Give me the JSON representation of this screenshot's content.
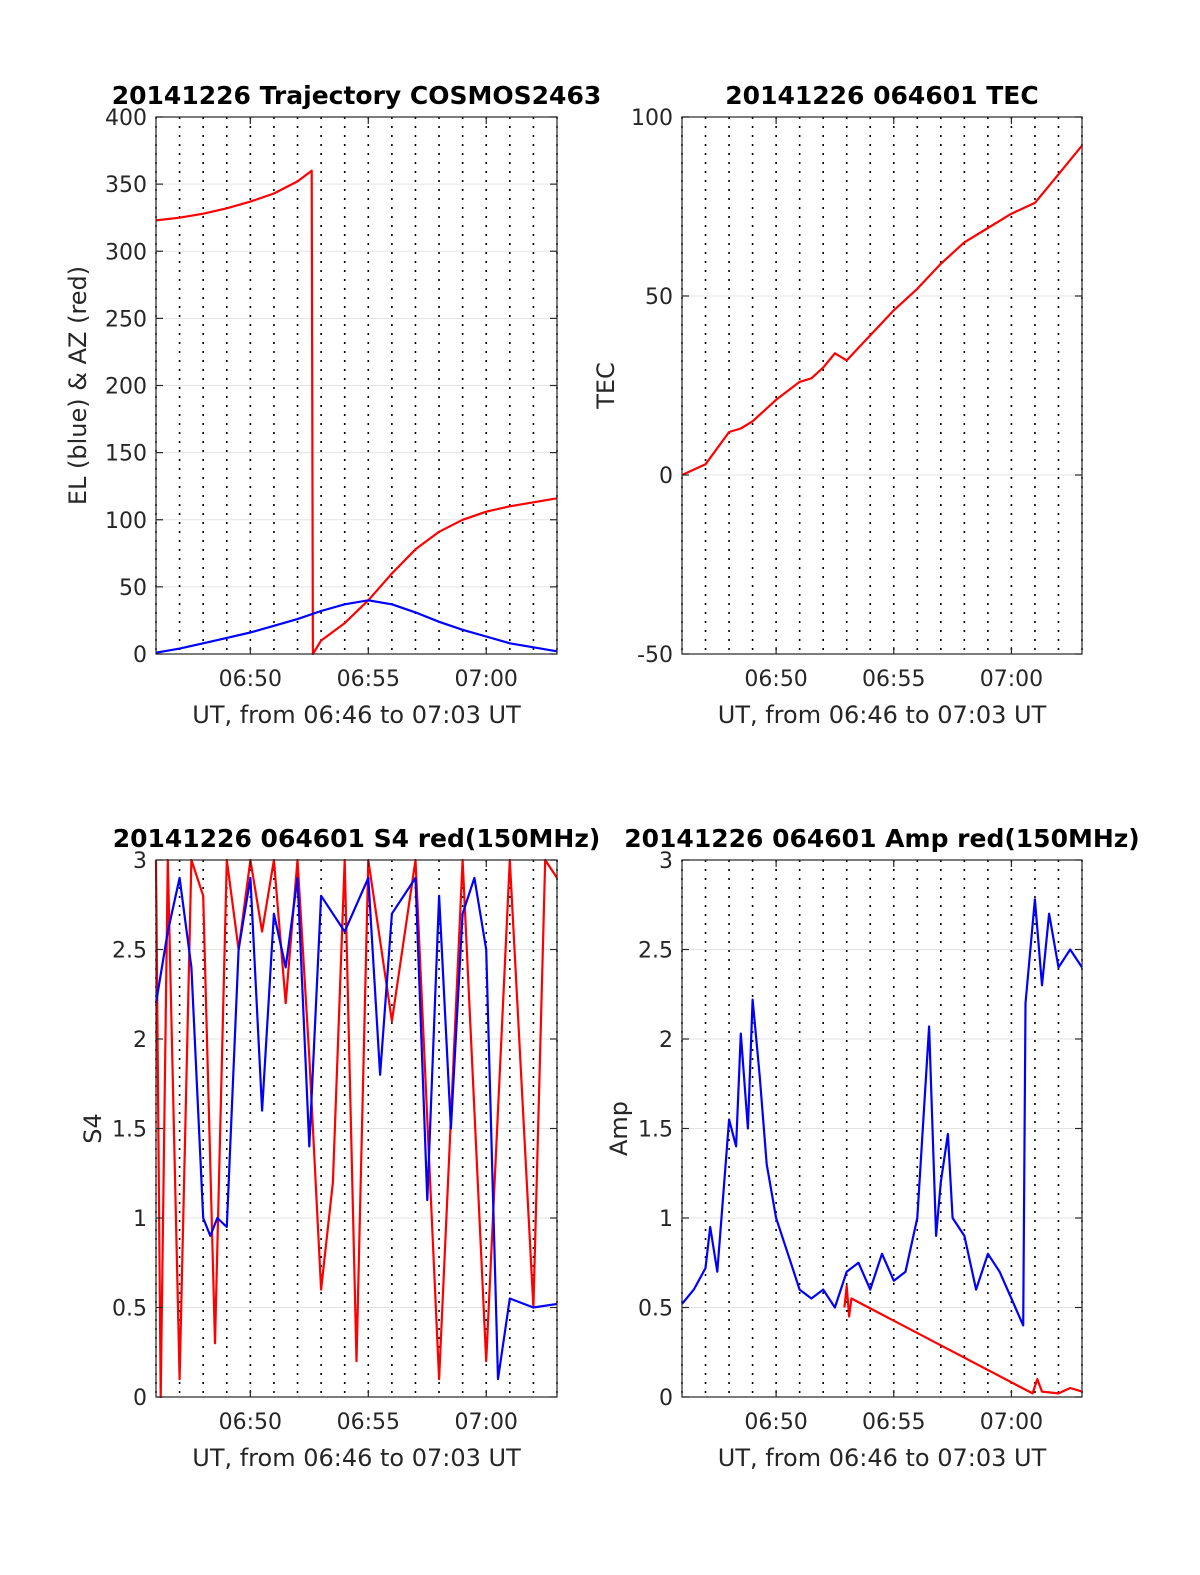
{
  "chart_data": [
    {
      "type": "line",
      "title": "20141226 Trajectory COSMOS2463",
      "xlabel": "UT, from 06:46 to 07:03 UT",
      "ylabel": "EL (blue) & AZ (red)",
      "x_unit": "minutes past 06:00 UT",
      "xlim": [
        46,
        63
      ],
      "ylim": [
        0,
        400
      ],
      "x_ticks": [
        {
          "value": 50,
          "label": "06:50"
        },
        {
          "value": 55,
          "label": "06:55"
        },
        {
          "value": 60,
          "label": "07:00"
        }
      ],
      "y_ticks": [
        0,
        50,
        100,
        150,
        200,
        250,
        300,
        350,
        400
      ],
      "grid": true,
      "series": [
        {
          "color": "#ff0000",
          "x": [
            46,
            47,
            48,
            49,
            50,
            51,
            52,
            52.6,
            52.65,
            53,
            54,
            55,
            56,
            57,
            58,
            59,
            60,
            61,
            62,
            63
          ],
          "y": [
            323,
            325,
            328,
            332,
            337,
            343,
            352,
            360,
            0,
            10,
            23,
            40,
            60,
            78,
            91,
            100,
            106,
            110,
            113,
            116
          ]
        },
        {
          "color": "#0000ff",
          "x": [
            46,
            47,
            48,
            49,
            50,
            51,
            52,
            53,
            54,
            55,
            56,
            57,
            58,
            59,
            60,
            61,
            62,
            63
          ],
          "y": [
            1,
            4,
            8,
            12,
            16,
            21,
            26,
            32,
            37,
            40,
            37,
            31,
            24,
            18,
            13,
            8,
            5,
            2
          ]
        }
      ]
    },
    {
      "type": "line",
      "title": "20141226 064601 TEC",
      "xlabel": "UT, from 06:46 to 07:03 UT",
      "ylabel": "TEC",
      "x_unit": "minutes past 06:00 UT",
      "xlim": [
        46,
        63
      ],
      "ylim": [
        -50,
        100
      ],
      "x_ticks": [
        {
          "value": 50,
          "label": "06:50"
        },
        {
          "value": 55,
          "label": "06:55"
        },
        {
          "value": 60,
          "label": "07:00"
        }
      ],
      "y_ticks": [
        -50,
        0,
        50,
        100
      ],
      "grid": true,
      "series": [
        {
          "color": "#ff0000",
          "x": [
            46,
            47,
            48,
            48.5,
            49,
            50,
            51,
            51.5,
            52,
            52.5,
            53,
            54,
            55,
            56,
            57,
            58,
            59,
            60,
            61,
            62,
            63
          ],
          "y": [
            0,
            3,
            12,
            13,
            15,
            21,
            26,
            27,
            30,
            34,
            32,
            39,
            46,
            52,
            59,
            65,
            69,
            73,
            76,
            84,
            92
          ]
        }
      ]
    },
    {
      "type": "line",
      "title": "20141226 064601 S4 red(150MHz)",
      "xlabel": "UT, from 06:46 to 07:03 UT",
      "ylabel": "S4",
      "x_unit": "minutes past 06:00 UT",
      "xlim": [
        46,
        63
      ],
      "ylim": [
        0,
        3
      ],
      "x_ticks": [
        {
          "value": 50,
          "label": "06:50"
        },
        {
          "value": 55,
          "label": "06:55"
        },
        {
          "value": 60,
          "label": "07:00"
        }
      ],
      "y_ticks": [
        0,
        0.5,
        1,
        1.5,
        2,
        2.5,
        3
      ],
      "y_tick_labels": [
        "0",
        "0.5",
        "1",
        "1.5",
        "2",
        "2.5",
        "3"
      ],
      "grid": true,
      "series": [
        {
          "color": "#ff0000",
          "x": [
            46,
            46.2,
            46.5,
            47,
            47.5,
            48,
            48.5,
            49,
            49.5,
            50,
            50.5,
            51,
            51.5,
            52,
            52.5,
            53,
            53.5,
            54,
            54.5,
            55,
            56,
            57,
            58,
            59,
            60,
            61,
            62,
            62.5,
            63
          ],
          "y": [
            3,
            0,
            3,
            0.1,
            3,
            2.8,
            0.3,
            3,
            2.5,
            3,
            2.6,
            3,
            2.2,
            3,
            1.9,
            0.6,
            1.2,
            3,
            0.2,
            3,
            2.1,
            3,
            0.1,
            3,
            0.2,
            3,
            0.5,
            3,
            2.9
          ]
        },
        {
          "color": "#0000ff",
          "x": [
            46,
            46.5,
            47,
            47.5,
            48,
            48.3,
            48.6,
            49,
            49.5,
            50,
            50.5,
            51,
            51.5,
            52,
            52.5,
            53,
            54,
            55,
            55.5,
            56,
            57,
            57.5,
            58,
            58.5,
            59,
            59.5,
            60,
            60.5,
            61,
            62,
            63
          ],
          "y": [
            2.2,
            2.6,
            2.9,
            2.4,
            1.0,
            0.9,
            1.0,
            0.95,
            2.5,
            2.9,
            1.6,
            2.7,
            2.4,
            2.9,
            1.4,
            2.8,
            2.6,
            2.9,
            1.8,
            2.7,
            2.9,
            1.1,
            2.8,
            1.5,
            2.7,
            2.9,
            2.5,
            0.1,
            0.55,
            0.5,
            0.52
          ]
        }
      ]
    },
    {
      "type": "line",
      "title": "20141226 064601 Amp red(150MHz)",
      "xlabel": "UT, from 06:46 to 07:03 UT",
      "ylabel": "Amp",
      "x_unit": "minutes past 06:00 UT",
      "xlim": [
        46,
        63
      ],
      "ylim": [
        0,
        3
      ],
      "x_ticks": [
        {
          "value": 50,
          "label": "06:50"
        },
        {
          "value": 55,
          "label": "06:55"
        },
        {
          "value": 60,
          "label": "07:00"
        }
      ],
      "y_ticks": [
        0,
        0.5,
        1,
        1.5,
        2,
        2.5,
        3
      ],
      "y_tick_labels": [
        "0",
        "0.5",
        "1",
        "1.5",
        "2",
        "2.5",
        "3"
      ],
      "grid": true,
      "series": [
        {
          "color": "#ff0000",
          "x": [
            52.9,
            53.0,
            53.1,
            53.2,
            60.9,
            61.1,
            61.3,
            62.0,
            62.5,
            63
          ],
          "y": [
            0.5,
            0.62,
            0.45,
            0.55,
            0.02,
            0.1,
            0.03,
            0.02,
            0.05,
            0.03
          ]
        },
        {
          "color": "#0000ff",
          "x": [
            46,
            46.5,
            47,
            47.2,
            47.5,
            48,
            48.3,
            48.5,
            48.8,
            49,
            49.3,
            49.6,
            50,
            50.5,
            51,
            51.5,
            52,
            52.5,
            53,
            53.5,
            54,
            54.5,
            55,
            55.5,
            56,
            56.5,
            56.8,
            57,
            57.3,
            57.5,
            58,
            58.5,
            59,
            59.5,
            60,
            60.5,
            60.6,
            61,
            61.3,
            61.6,
            62,
            62.5,
            63
          ],
          "y": [
            0.52,
            0.6,
            0.72,
            0.95,
            0.7,
            1.55,
            1.4,
            2.03,
            1.5,
            2.22,
            1.8,
            1.3,
            1.0,
            0.8,
            0.6,
            0.55,
            0.6,
            0.5,
            0.7,
            0.75,
            0.6,
            0.8,
            0.65,
            0.7,
            1.0,
            2.07,
            0.9,
            1.2,
            1.47,
            1.0,
            0.9,
            0.6,
            0.8,
            0.7,
            0.55,
            0.4,
            2.2,
            2.78,
            2.3,
            2.7,
            2.4,
            2.5,
            2.4
          ]
        }
      ]
    }
  ]
}
